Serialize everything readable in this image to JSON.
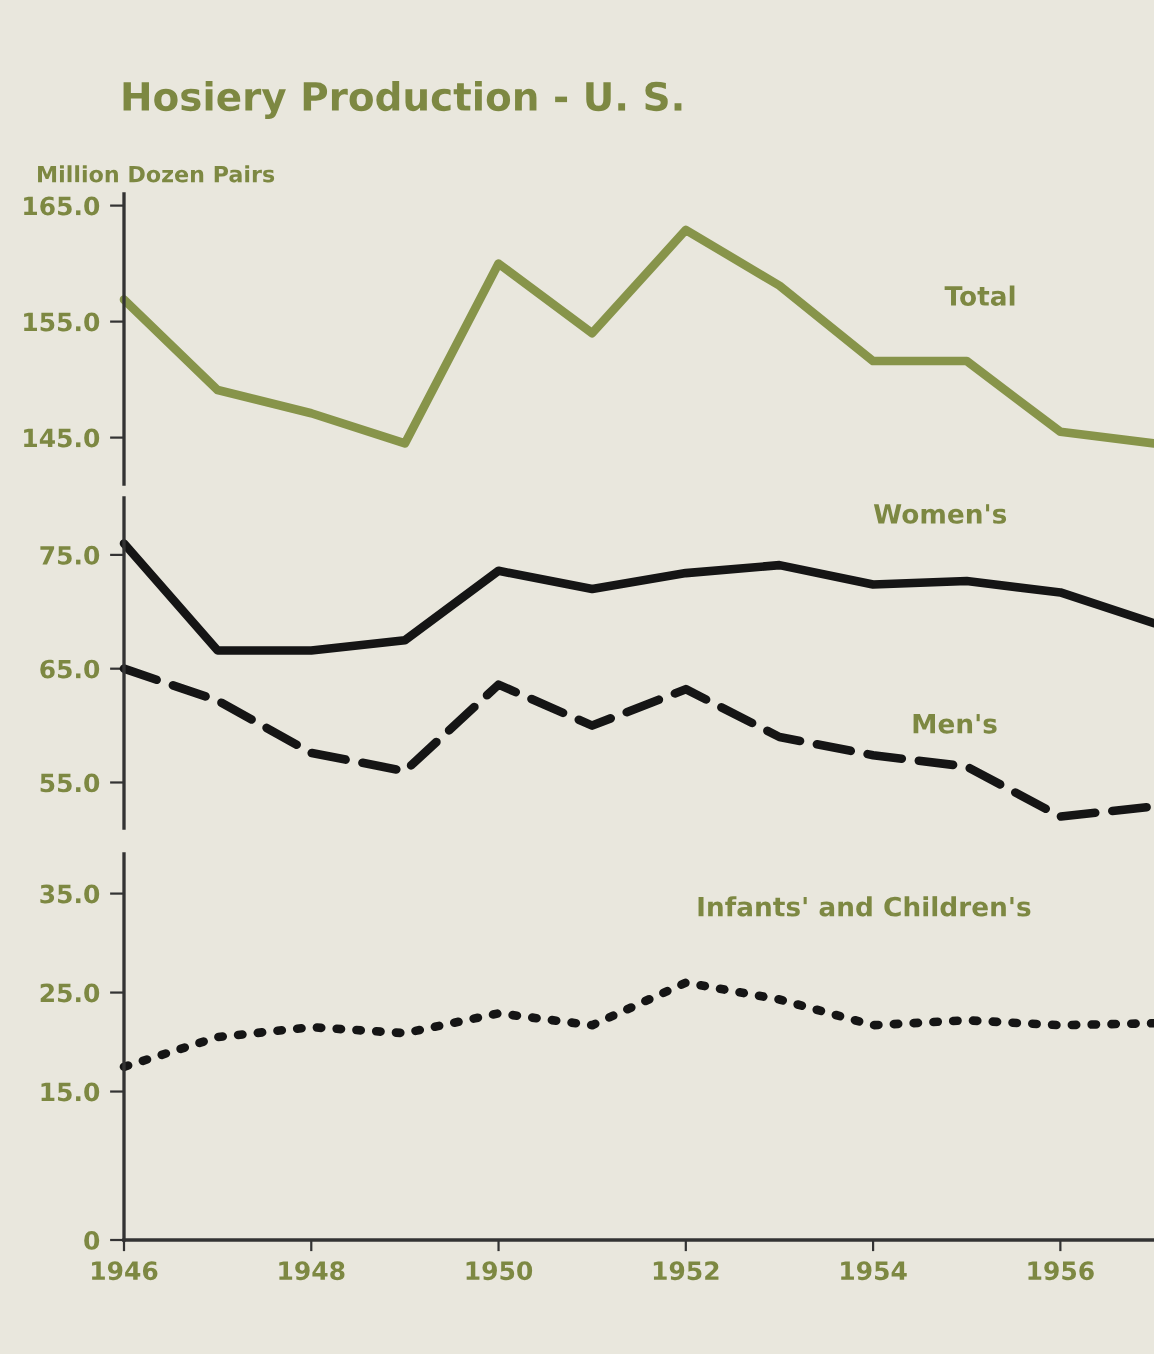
{
  "chart_data": [
    {
      "type": "line",
      "title": "Hosiery Production - U. S.",
      "ylabel": "Million Dozen Pairs",
      "x": [
        1946,
        1947,
        1948,
        1949,
        1950,
        1951,
        1952,
        1953,
        1954,
        1955,
        1956,
        1957
      ],
      "xlim": [
        1946,
        1957
      ],
      "xticks": [
        1946,
        1948,
        1950,
        1952,
        1954,
        1956
      ],
      "ylim": [
        141,
        166
      ],
      "yticks": [
        {
          "value": 145,
          "label": "145.0"
        },
        {
          "value": 155,
          "label": "155.0"
        },
        {
          "value": 165,
          "label": "165.0"
        }
      ],
      "tick_labels": "y",
      "grid": false,
      "marker": "none",
      "series": [
        {
          "name": "Total",
          "color": "#87944a",
          "line_style": "solid",
          "values": [
            156.9,
            149.1,
            147.1,
            144.5,
            160,
            154,
            162.9,
            158.1,
            151.6,
            151.6,
            145.5,
            144.5
          ]
        }
      ]
    },
    {
      "type": "line",
      "x": [
        1946,
        1947,
        1948,
        1949,
        1950,
        1951,
        1952,
        1953,
        1954,
        1955,
        1956,
        1957
      ],
      "xlim": [
        1946,
        1957
      ],
      "xticks": [
        1946,
        1948,
        1950,
        1952,
        1954,
        1956
      ],
      "ylim": [
        51,
        80
      ],
      "yticks": [
        {
          "value": 55,
          "label": "55.0"
        },
        {
          "value": 65,
          "label": "65.0"
        },
        {
          "value": 75,
          "label": "75.0"
        }
      ],
      "tick_labels": "y",
      "grid": false,
      "marker": "none",
      "series": [
        {
          "name": "Women's",
          "color": "#151515",
          "line_style": "solid",
          "values": [
            76,
            66.6,
            66.6,
            67.5,
            73.6,
            72,
            73.4,
            74.1,
            72.4,
            72.7,
            71.7,
            69
          ]
        },
        {
          "name": "Men's",
          "color": "#151515",
          "line_style": "dashed",
          "values": [
            65,
            62.2,
            57.6,
            56,
            63.6,
            60,
            63.2,
            59,
            57.4,
            56.4,
            52,
            52.9
          ]
        }
      ]
    },
    {
      "type": "line",
      "x": [
        1946,
        1947,
        1948,
        1949,
        1950,
        1951,
        1952,
        1953,
        1954,
        1955,
        1956,
        1957
      ],
      "xlim": [
        1946,
        1957
      ],
      "xticks": [
        1946,
        1948,
        1950,
        1952,
        1954,
        1956
      ],
      "ylim": [
        0,
        39
      ],
      "yticks": [
        0,
        {
          "value": 15,
          "label": "15.0"
        },
        {
          "value": 25,
          "label": "25.0"
        },
        {
          "value": 35,
          "label": "35.0"
        }
      ],
      "grid": false,
      "marker": "none",
      "series": [
        {
          "name": "Infants' and Children's",
          "color": "#151515",
          "line_style": "dotted",
          "values": [
            17.5,
            20.5,
            21.5,
            20.9,
            22.9,
            21.7,
            26,
            24.3,
            21.7,
            22.2,
            21.7,
            21.9
          ]
        }
      ]
    }
  ]
}
